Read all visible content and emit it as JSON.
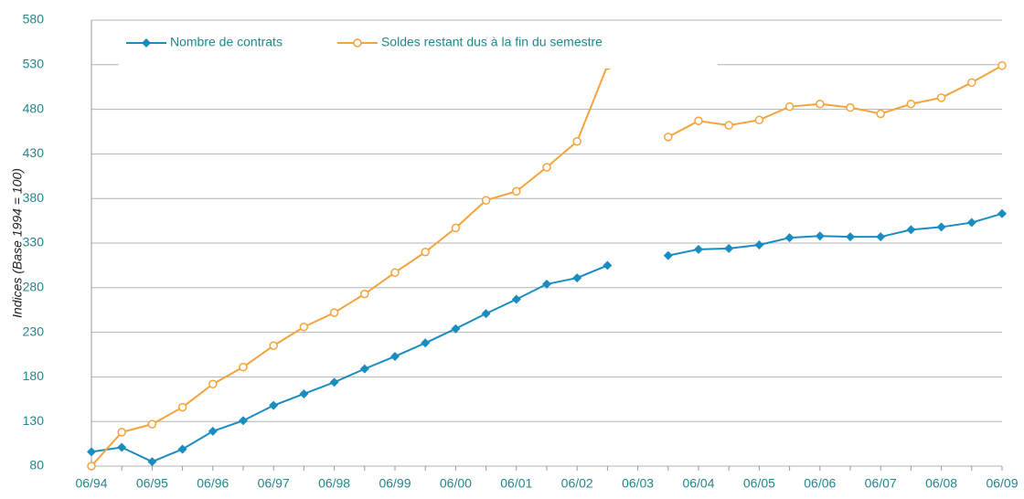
{
  "chart_data": {
    "type": "line",
    "y_label": "Indices (Base 1994 = 100)",
    "categories": [
      "06/94",
      null,
      "06/95",
      null,
      "06/96",
      null,
      "06/97",
      null,
      "06/98",
      null,
      "06/99",
      null,
      "06/00",
      null,
      "06/01",
      null,
      "06/02",
      null,
      "06/03",
      null,
      "06/04",
      null,
      "06/05",
      null,
      "06/06",
      null,
      "06/07",
      null,
      "06/08",
      null,
      "06/09"
    ],
    "series": [
      {
        "name": "Nombre de contrats",
        "color": "#1a8cc0",
        "marker": "diamond",
        "values": [
          96,
          101,
          85,
          99,
          119,
          131,
          148,
          161,
          174,
          189,
          203,
          218,
          234,
          251,
          267,
          284,
          291,
          305,
          null,
          316,
          323,
          324,
          328,
          336,
          338,
          337,
          337,
          345,
          348,
          353,
          363
        ]
      },
      {
        "name": "Soldes restant dus à la fin du semestre",
        "color": "#f5a33c",
        "marker": "circle",
        "values": [
          80,
          118,
          127,
          146,
          172,
          191,
          215,
          236,
          252,
          273,
          297,
          320,
          347,
          378,
          388,
          415,
          444,
          529,
          null,
          449,
          467,
          462,
          468,
          483,
          486,
          482,
          475,
          486,
          493,
          510,
          529
        ]
      }
    ],
    "ylim": [
      80,
      580
    ],
    "yticks": [
      80,
      130,
      180,
      230,
      280,
      330,
      380,
      430,
      480,
      530,
      580
    ],
    "grid": true,
    "legend": "top-left"
  }
}
